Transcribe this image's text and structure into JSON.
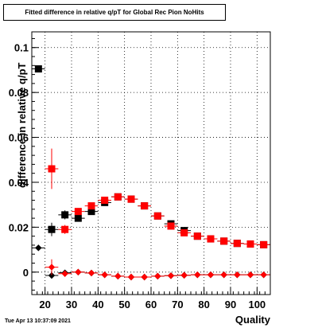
{
  "header": {
    "title": "Fitted difference in relative q/pT for Global Rec Pion NoHits",
    "timestamp": "Tue Apr 13 10:37:09 2021"
  },
  "chart_data": {
    "type": "scatter",
    "title": "Fitted difference in relative q/pT for Global Rec Pion NoHits",
    "xlabel": "Quality",
    "ylabel": "difference in relative q/pT",
    "xlim": [
      15,
      105
    ],
    "ylim": [
      -0.01,
      0.107
    ],
    "grid": true,
    "x_ticks": [
      20,
      30,
      40,
      50,
      60,
      70,
      80,
      90,
      100
    ],
    "x_tick_labels": [
      "20",
      "30",
      "40",
      "50",
      "60",
      "70",
      "80",
      "90",
      "100"
    ],
    "y_ticks": [
      0,
      0.02,
      0.04,
      0.06,
      0.08,
      0.1
    ],
    "y_tick_labels": [
      "0",
      "0.02",
      "0.04",
      "0.06",
      "0.08",
      "0.1"
    ],
    "x": [
      17.5,
      22.5,
      27.5,
      32.5,
      37.5,
      42.5,
      47.5,
      52.5,
      57.5,
      62.5,
      67.5,
      72.5,
      77.5,
      82.5,
      87.5,
      92.5,
      97.5,
      102.5
    ],
    "series": [
      {
        "marker": "square",
        "color": "#000000",
        "values": [
          0.0905,
          0.019,
          0.0255,
          0.024,
          0.027,
          0.031,
          0.0335,
          0.0325,
          0.0295,
          0.025,
          0.0215,
          0.0185,
          0.016,
          0.0148,
          0.0138,
          0.0128,
          0.0125,
          0.0122
        ],
        "errors": [
          0.0008,
          0.003,
          0.002,
          0.0015,
          0.0012,
          0.001,
          0.001,
          0.001,
          0.001,
          0.0009,
          0.0008,
          0.0008,
          0.0008,
          0.0008,
          0.0008,
          0.0008,
          0.0008,
          0.0008
        ]
      },
      {
        "marker": "square",
        "color": "#ff0000",
        "values": [
          null,
          0.046,
          0.019,
          0.027,
          0.0295,
          0.032,
          0.0335,
          0.0325,
          0.0295,
          0.025,
          0.0205,
          0.0175,
          0.016,
          0.0148,
          0.0138,
          0.0128,
          0.0125,
          0.0122
        ],
        "errors": [
          null,
          0.009,
          0.002,
          0.0015,
          0.0012,
          0.001,
          0.001,
          0.001,
          0.001,
          0.0009,
          0.0008,
          0.0008,
          0.0008,
          0.0008,
          0.0008,
          0.0008,
          0.0008,
          0.0008
        ]
      },
      {
        "marker": "diamond",
        "color": "#000000",
        "values": [
          0.0108,
          -0.0015,
          -0.0003,
          0.0,
          -0.0004,
          -0.0012,
          -0.0018,
          -0.0022,
          -0.0022,
          -0.0018,
          -0.0016,
          -0.0014,
          -0.0012,
          -0.0012,
          -0.0012,
          -0.0012,
          -0.0012,
          -0.0012
        ],
        "errors": [
          0.0008,
          0.0008,
          0.0005,
          0.0004,
          0.0004,
          0.0003,
          0.0003,
          0.0003,
          0.0003,
          0.0003,
          0.0003,
          0.0003,
          0.0003,
          0.0003,
          0.0003,
          0.0003,
          0.0003,
          0.0003
        ]
      },
      {
        "marker": "diamond",
        "color": "#ff0000",
        "values": [
          null,
          0.0022,
          -0.0007,
          0.0,
          -0.0004,
          -0.0012,
          -0.0018,
          -0.0022,
          -0.0022,
          -0.0018,
          -0.0016,
          -0.0014,
          -0.0012,
          -0.0012,
          -0.0012,
          -0.0012,
          -0.0012,
          -0.0012
        ],
        "errors": [
          null,
          0.0035,
          0.0006,
          0.0004,
          0.0004,
          0.0003,
          0.0003,
          0.0003,
          0.0003,
          0.0003,
          0.0003,
          0.0003,
          0.0003,
          0.0003,
          0.0003,
          0.0003,
          0.0003,
          0.0003
        ]
      }
    ]
  }
}
